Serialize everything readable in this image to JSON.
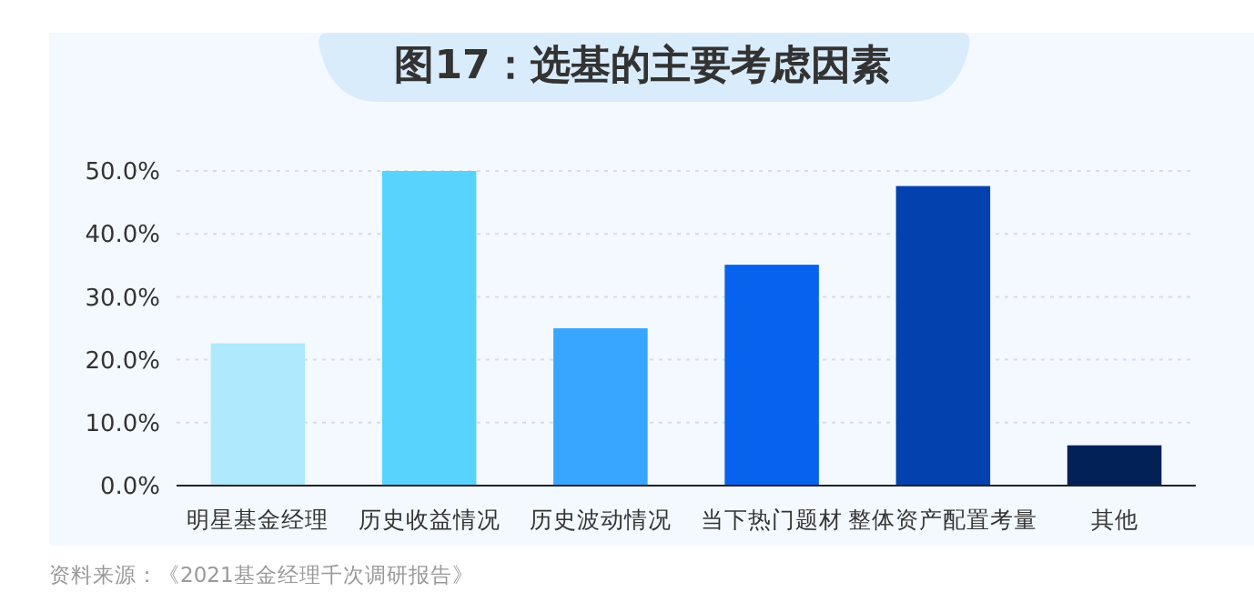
{
  "chart_data": {
    "type": "bar",
    "title": "图17：选基的主要考虑因素",
    "categories": [
      "明星基金经理",
      "历史收益情况",
      "历史波动情况",
      "当下热门题材",
      "整体资产配置考量",
      "其他"
    ],
    "values": [
      22.6,
      50.0,
      25.0,
      35.1,
      47.6,
      6.4
    ],
    "colors": [
      "#aee9fd",
      "#57d3fe",
      "#38a6fe",
      "#0763ed",
      "#0342ae",
      "#012157"
    ],
    "ylim": [
      0,
      50
    ],
    "yticks": [
      {
        "value": 0,
        "label": "0.0%"
      },
      {
        "value": 10,
        "label": "10.0%"
      },
      {
        "value": 20,
        "label": "20.0%"
      },
      {
        "value": 30,
        "label": "30.0%"
      },
      {
        "value": 40,
        "label": "40.0%"
      },
      {
        "value": 50,
        "label": "50.0%"
      }
    ],
    "grid": "y",
    "annotations": [
      "资料来源：《2021基金经理千次调研报告》"
    ]
  }
}
